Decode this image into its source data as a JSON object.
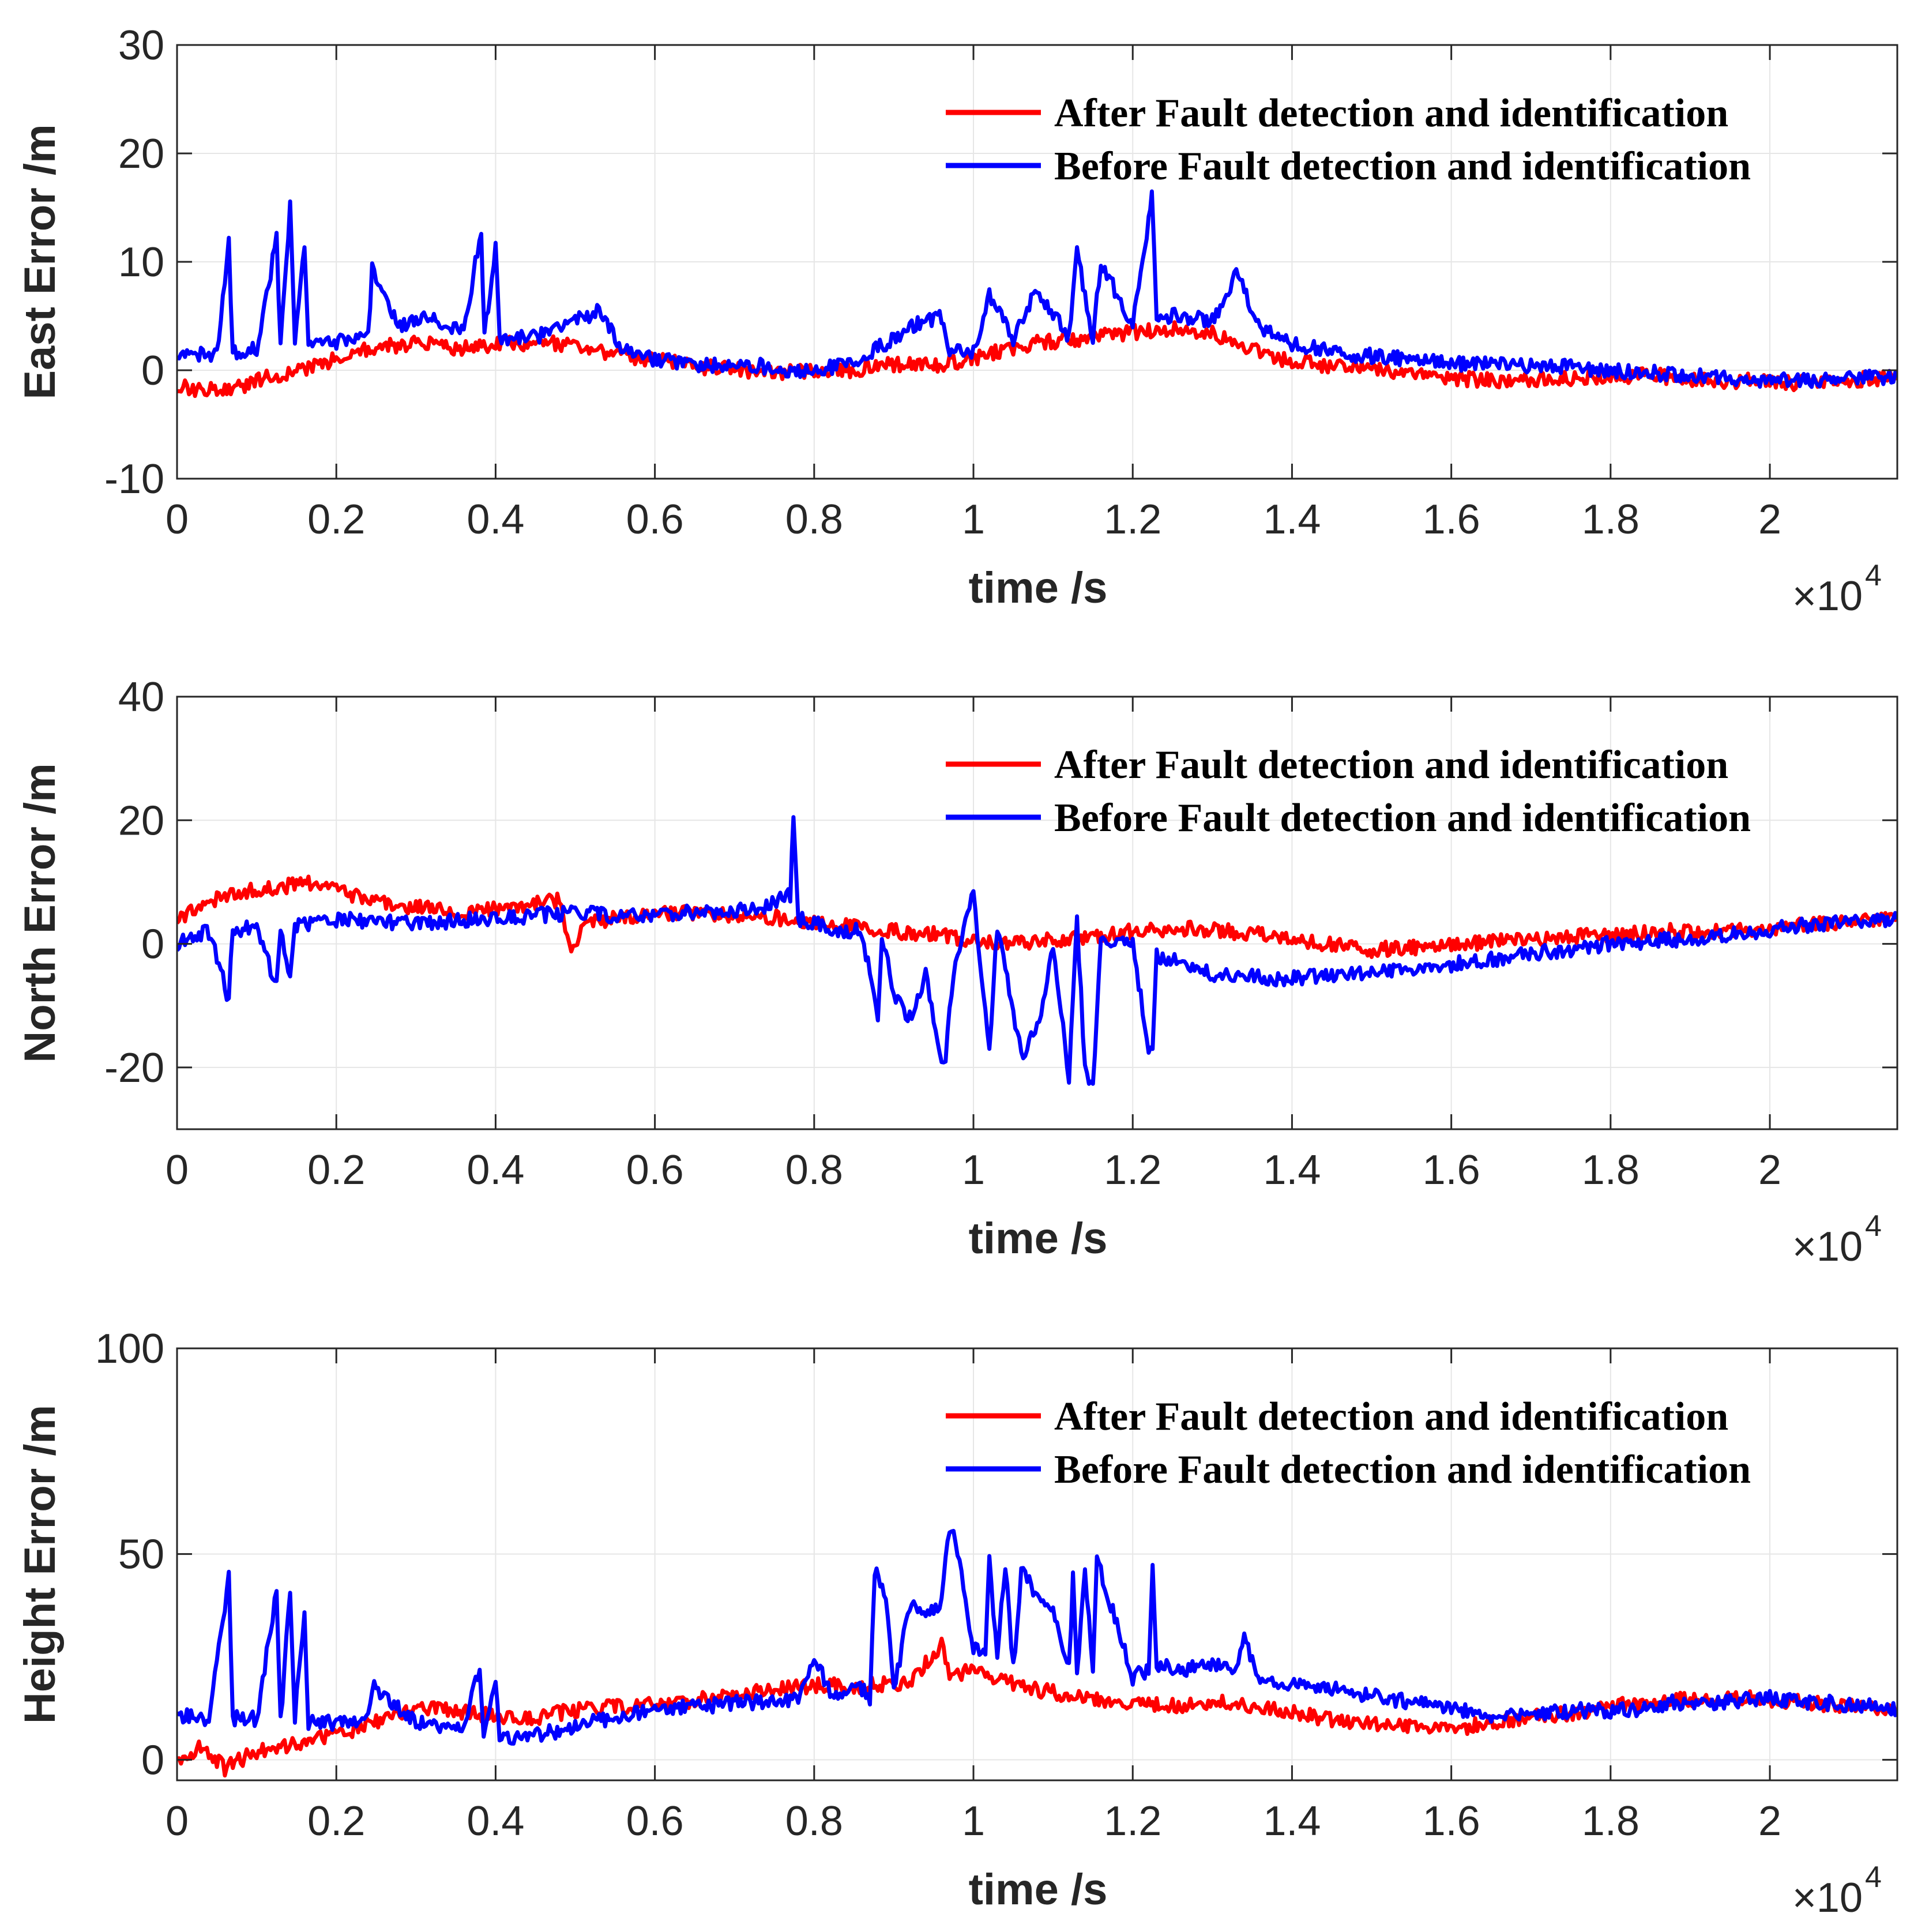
{
  "figure": {
    "colors": {
      "after": "#ff0000",
      "before": "#0000ff",
      "axis": "#262626",
      "grid": "#e6e6e6"
    }
  },
  "chart_data": [
    {
      "type": "line",
      "xlabel": "time /s",
      "ylabel": "East Error /m",
      "xlim": [
        0,
        21600
      ],
      "ylim": [
        -10,
        30
      ],
      "x_ticks": [
        0,
        2000,
        4000,
        6000,
        8000,
        10000,
        12000,
        14000,
        16000,
        18000,
        20000
      ],
      "x_tick_labels": [
        "0",
        "0.2",
        "0.4",
        "0.6",
        "0.8",
        "1",
        "1.2",
        "1.4",
        "1.6",
        "1.8",
        "2"
      ],
      "x_exponent_label": "×10",
      "x_exponent_power": "4",
      "y_ticks": [
        -10,
        0,
        10,
        20,
        30
      ],
      "y_tick_labels": [
        "-10",
        "0",
        "10",
        "20",
        "30"
      ],
      "grid": true,
      "legend_position": "top-right",
      "series": [
        {
          "name": "After Fault detection and identification",
          "color": "#ff0000",
          "x": [
            0,
            600,
            1200,
            1800,
            2400,
            3000,
            3600,
            4200,
            4800,
            5400,
            6000,
            6600,
            7200,
            7800,
            8400,
            9000,
            9600,
            10200,
            10800,
            11400,
            12000,
            12600,
            13200,
            13800,
            14400,
            15000,
            15600,
            16200,
            16800,
            17400,
            18000,
            18600,
            19200,
            19800,
            20400,
            21000,
            21600
          ],
          "y": [
            -1.5,
            -2,
            -0.5,
            0.5,
            2,
            2.5,
            2,
            2.5,
            2.5,
            1.5,
            1,
            0.3,
            0,
            -0.2,
            0,
            0.5,
            0.5,
            1.5,
            2.5,
            3,
            3.5,
            4,
            3,
            1,
            0.5,
            0,
            -0.5,
            -0.8,
            -1,
            -0.8,
            -0.5,
            -0.5,
            -1,
            -1,
            -1.2,
            -1,
            -0.5
          ]
        },
        {
          "name": "Before Fault detection and identification",
          "color": "#0000ff",
          "x": [
            0,
            500,
            650,
            700,
            1000,
            1250,
            1300,
            1420,
            1480,
            1600,
            1650,
            1800,
            2400,
            2450,
            2800,
            3200,
            3600,
            3820,
            3860,
            4000,
            4050,
            4500,
            5300,
            5600,
            6000,
            6600,
            7200,
            7800,
            8400,
            8800,
            9200,
            9600,
            9700,
            10000,
            10200,
            10500,
            10800,
            11200,
            11300,
            11500,
            11600,
            12000,
            12200,
            12240,
            12300,
            12600,
            13000,
            13300,
            13600,
            13800,
            14000,
            14600,
            15600,
            16200,
            16800,
            17400,
            18000,
            18600,
            19200,
            19800,
            20400,
            21000,
            21600
          ],
          "y": [
            1.5,
            1.5,
            12,
            1.5,
            2,
            12,
            2,
            15,
            2,
            12,
            2.5,
            2.5,
            3,
            9.5,
            4,
            5,
            3.5,
            13,
            3,
            11.5,
            3,
            3,
            5.5,
            2,
            1,
            0.5,
            0.5,
            0,
            0.5,
            2,
            4,
            5,
            2,
            1.5,
            7,
            3,
            7.5,
            3,
            11,
            3,
            10,
            4,
            14,
            16,
            5,
            5,
            4.5,
            9,
            4,
            3.5,
            2.5,
            1.5,
            1,
            0.5,
            0.5,
            0.3,
            0,
            -0.3,
            -0.5,
            -0.8,
            -1,
            -0.8,
            -0.5
          ]
        }
      ]
    },
    {
      "type": "line",
      "xlabel": "time /s",
      "ylabel": "North Error /m",
      "xlim": [
        0,
        21600
      ],
      "ylim": [
        -30,
        40
      ],
      "x_ticks": [
        0,
        2000,
        4000,
        6000,
        8000,
        10000,
        12000,
        14000,
        16000,
        18000,
        20000
      ],
      "x_tick_labels": [
        "0",
        "0.2",
        "0.4",
        "0.6",
        "0.8",
        "1",
        "1.2",
        "1.4",
        "1.6",
        "1.8",
        "2"
      ],
      "x_exponent_label": "×10",
      "x_exponent_power": "4",
      "y_ticks": [
        -20,
        0,
        20,
        40
      ],
      "y_tick_labels": [
        "-20",
        "0",
        "20",
        "40"
      ],
      "grid": true,
      "legend_position": "top-right",
      "series": [
        {
          "name": "After Fault detection and identification",
          "color": "#ff0000",
          "x": [
            0,
            600,
            1200,
            1800,
            2400,
            3000,
            3600,
            4200,
            4800,
            4950,
            5100,
            5400,
            6000,
            6600,
            7200,
            7800,
            8400,
            9000,
            9600,
            10200,
            10800,
            11400,
            12000,
            12600,
            13200,
            13800,
            14400,
            15000,
            15600,
            16200,
            16800,
            17400,
            18000,
            18600,
            19200,
            19800,
            20400,
            21000,
            21600
          ],
          "y": [
            4,
            8,
            9,
            10,
            7,
            6,
            5,
            6,
            7,
            -2,
            3,
            4,
            5,
            5,
            4.5,
            4,
            3,
            2,
            1.5,
            0,
            0.5,
            1,
            2,
            2.5,
            2,
            1.5,
            0,
            -1,
            -0.5,
            0,
            0.5,
            1,
            1.5,
            2,
            2,
            2.5,
            3,
            3.5,
            4
          ]
        },
        {
          "name": "Before Fault detection and identification",
          "color": "#0000ff",
          "x": [
            0,
            400,
            650,
            700,
            1000,
            1250,
            1300,
            1420,
            1480,
            1600,
            2000,
            2600,
            3200,
            3800,
            4400,
            5000,
            5600,
            6200,
            6800,
            7400,
            7700,
            7740,
            7800,
            8200,
            8600,
            8800,
            8850,
            9000,
            9200,
            9400,
            9600,
            9650,
            9750,
            10000,
            10100,
            10200,
            10300,
            10600,
            10800,
            11000,
            11200,
            11300,
            11400,
            11500,
            11600,
            12000,
            12200,
            12250,
            12300,
            12600,
            13000,
            13400,
            13800,
            14400,
            15000,
            15600,
            16200,
            16800,
            17400,
            18000,
            18600,
            19200,
            19800,
            20400,
            21000,
            21600
          ],
          "y": [
            0,
            2,
            -9,
            2,
            3,
            -7,
            3,
            -6,
            3,
            3,
            4,
            3.5,
            3.5,
            4,
            4.5,
            5,
            4.5,
            5,
            5,
            6,
            8,
            20,
            4,
            2.5,
            2,
            -12,
            2,
            -8,
            -12,
            -5,
            -20,
            -18,
            -5,
            9,
            -5,
            -18,
            3,
            -18,
            -14,
            0,
            -22,
            4,
            -20,
            -23,
            1,
            0,
            -17,
            -16,
            -2,
            -3,
            -5,
            -5,
            -6,
            -5,
            -4.5,
            -4,
            -3,
            -2,
            -1,
            0,
            0.5,
            1,
            2,
            3,
            3.5,
            4
          ]
        }
      ]
    },
    {
      "type": "line",
      "xlabel": "time /s",
      "ylabel": "Height Error /m",
      "xlim": [
        0,
        21600
      ],
      "ylim": [
        -5,
        100
      ],
      "x_ticks": [
        0,
        2000,
        4000,
        6000,
        8000,
        10000,
        12000,
        14000,
        16000,
        18000,
        20000
      ],
      "x_tick_labels": [
        "0",
        "0.2",
        "0.4",
        "0.6",
        "0.8",
        "1",
        "1.2",
        "1.4",
        "1.6",
        "1.8",
        "2"
      ],
      "x_exponent_label": "×10",
      "x_exponent_power": "4",
      "y_ticks": [
        0,
        50,
        100
      ],
      "y_tick_labels": [
        "0",
        "50",
        "100"
      ],
      "grid": true,
      "legend_position": "top-right",
      "series": [
        {
          "name": "After Fault detection and identification",
          "color": "#ff0000",
          "x": [
            0,
            300,
            600,
            1000,
            1500,
            2000,
            2600,
            3200,
            3800,
            4400,
            5000,
            5600,
            6200,
            6800,
            7400,
            8000,
            8600,
            9200,
            9600,
            9700,
            10000,
            10400,
            10800,
            11400,
            12000,
            12600,
            13200,
            13800,
            14400,
            15000,
            15600,
            16200,
            16800,
            17400,
            18000,
            18600,
            19200,
            19800,
            20400,
            21000,
            21600
          ],
          "y": [
            0,
            3,
            -2,
            2,
            4,
            6,
            10,
            13,
            11,
            10,
            12,
            13,
            14,
            15,
            17,
            18,
            18,
            19,
            28,
            20,
            22,
            19,
            17,
            15,
            14,
            13,
            14,
            12,
            10,
            9,
            8,
            8,
            10,
            11,
            13,
            14,
            15,
            15,
            14,
            13,
            12
          ]
        },
        {
          "name": "Before Fault detection and identification",
          "color": "#0000ff",
          "x": [
            0,
            400,
            650,
            700,
            1000,
            1250,
            1300,
            1420,
            1480,
            1600,
            1650,
            2000,
            2400,
            2450,
            3000,
            3600,
            3800,
            3850,
            4000,
            4050,
            4400,
            4800,
            5200,
            5600,
            6000,
            6600,
            7200,
            7800,
            8000,
            8200,
            8600,
            8700,
            8760,
            8900,
            9000,
            9200,
            9400,
            9600,
            9700,
            9750,
            9800,
            10000,
            10150,
            10200,
            10300,
            10400,
            10500,
            10600,
            10800,
            11000,
            11200,
            11250,
            11300,
            11400,
            11500,
            11550,
            12000,
            12200,
            12250,
            12300,
            12600,
            13000,
            13300,
            13400,
            13600,
            14000,
            14600,
            15200,
            15800,
            16400,
            17000,
            17600,
            18200,
            18800,
            19400,
            20000,
            20600,
            21200,
            21600
          ],
          "y": [
            11,
            10,
            44,
            10,
            10,
            41,
            9,
            42,
            10,
            36,
            9,
            9,
            10,
            18,
            9,
            8,
            22,
            6,
            20,
            5,
            6,
            7,
            9,
            11,
            12,
            13,
            14,
            15,
            26,
            16,
            17,
            15,
            46,
            40,
            16,
            38,
            36,
            38,
            57,
            55,
            50,
            27,
            25,
            49,
            25,
            48,
            22,
            46,
            40,
            36,
            22,
            45,
            21,
            47,
            21,
            49,
            20,
            22,
            47,
            23,
            22,
            23,
            21,
            29,
            20,
            18,
            17,
            15,
            13,
            11,
            11,
            12,
            12,
            14,
            14,
            15,
            14,
            13,
            12
          ]
        }
      ]
    }
  ]
}
